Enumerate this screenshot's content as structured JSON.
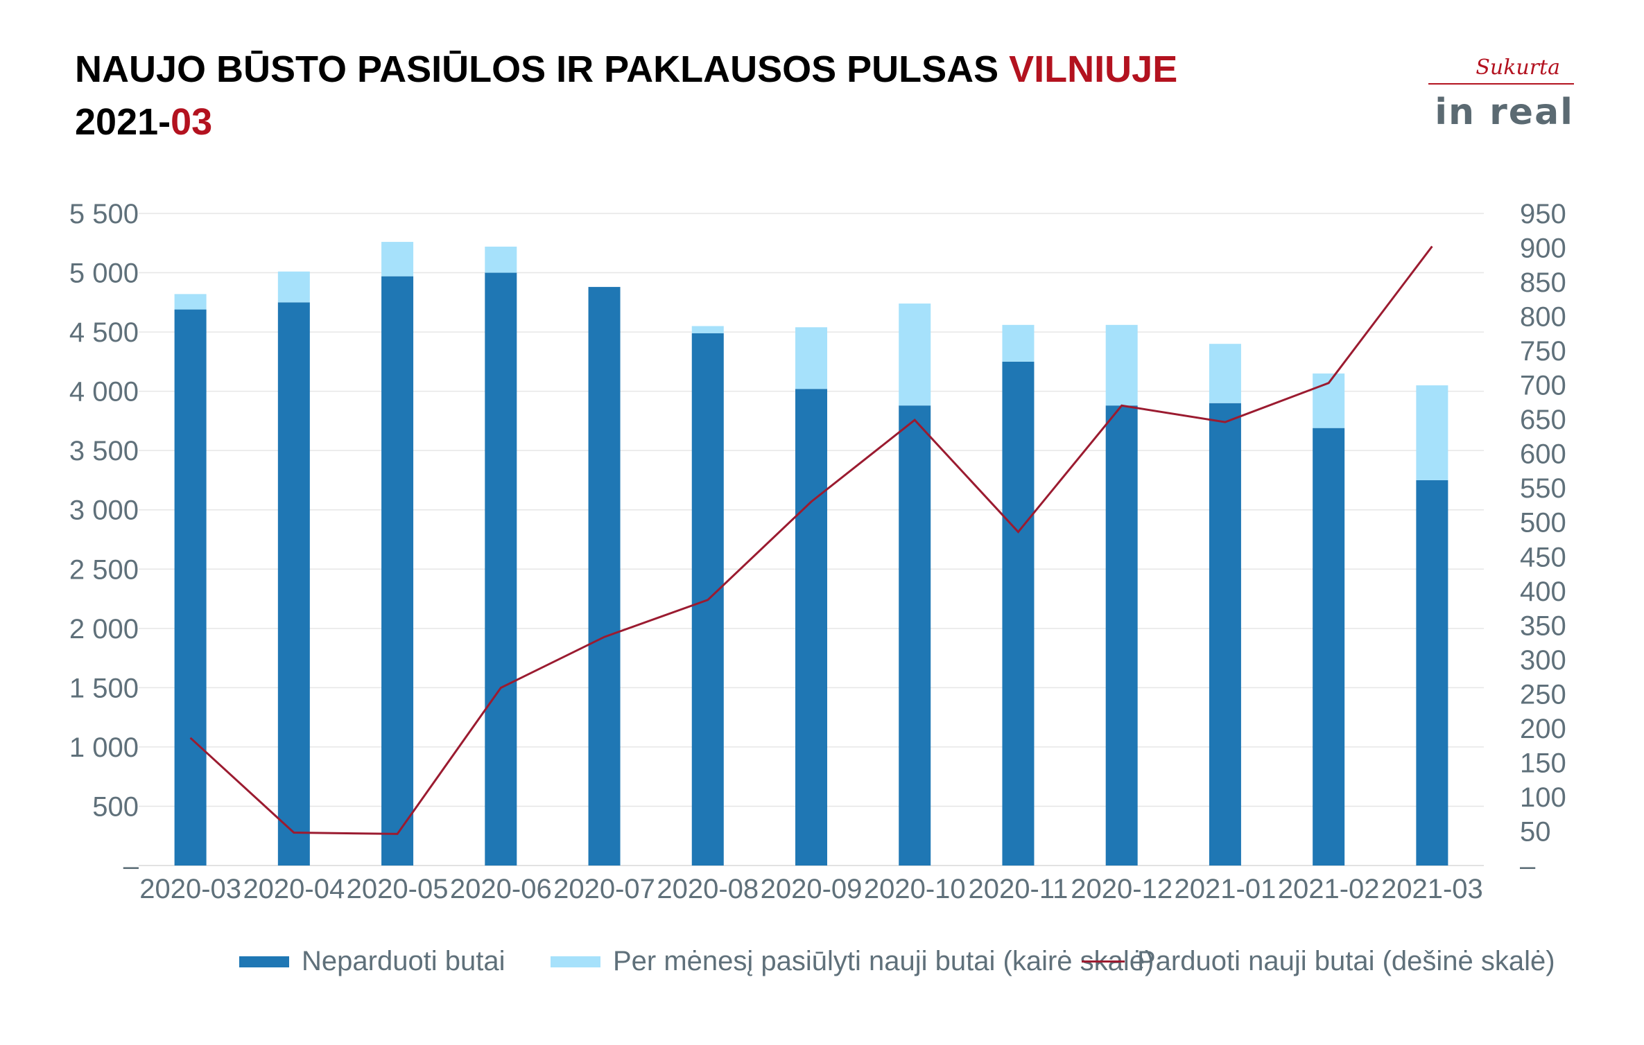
{
  "title": {
    "line1_main": "NAUJO BŪSTO PASIŪLOS IR PAKLAUSOS PULSAS ",
    "line1_accent": "VILNIUJE",
    "line2_main": "2021-",
    "line2_accent": "03"
  },
  "logo": {
    "top_text": "Sukurta",
    "brand_text": "in real"
  },
  "colors": {
    "unsold": "#1f77b4",
    "offered": "#a6e1fb",
    "sold": "#9b1b30",
    "accent": "#b3121f"
  },
  "chart_data": {
    "type": "bar",
    "categories": [
      "2020-03",
      "2020-04",
      "2020-05",
      "2020-06",
      "2020-07",
      "2020-08",
      "2020-09",
      "2020-10",
      "2020-11",
      "2020-12",
      "2021-01",
      "2021-02",
      "2021-03"
    ],
    "series": [
      {
        "name": "Neparduoti butai",
        "type": "bar",
        "stack": "a",
        "values": [
          4690,
          4750,
          4970,
          5000,
          4880,
          4490,
          4020,
          3880,
          4250,
          3880,
          3900,
          3690,
          3250
        ]
      },
      {
        "name": "Per mėnesį pasiūlyti nauji butai (kairė skalė)",
        "type": "bar",
        "stack": "a",
        "values": [
          130,
          260,
          290,
          220,
          0,
          60,
          520,
          860,
          310,
          680,
          500,
          460,
          800
        ]
      },
      {
        "name": "Parduoti nauji butai (dešinė skalė)",
        "type": "line",
        "axis": "right",
        "values": [
          186,
          48,
          46,
          259,
          333,
          387,
          530,
          649,
          486,
          670,
          646,
          703,
          902
        ]
      }
    ],
    "left_axis": {
      "ylim": [
        0,
        5500
      ],
      "ticks": [
        "–",
        "500",
        "1 000",
        "1 500",
        "2 000",
        "2 500",
        "3 000",
        "3 500",
        "4 000",
        "4 500",
        "5 000",
        "5 500"
      ]
    },
    "right_axis": {
      "ylim": [
        0,
        950
      ],
      "ticks": [
        "–",
        "50",
        "100",
        "150",
        "200",
        "250",
        "300",
        "350",
        "400",
        "450",
        "500",
        "550",
        "600",
        "650",
        "700",
        "750",
        "800",
        "850",
        "900",
        "950"
      ]
    },
    "grid": true,
    "legend_position": "bottom"
  }
}
